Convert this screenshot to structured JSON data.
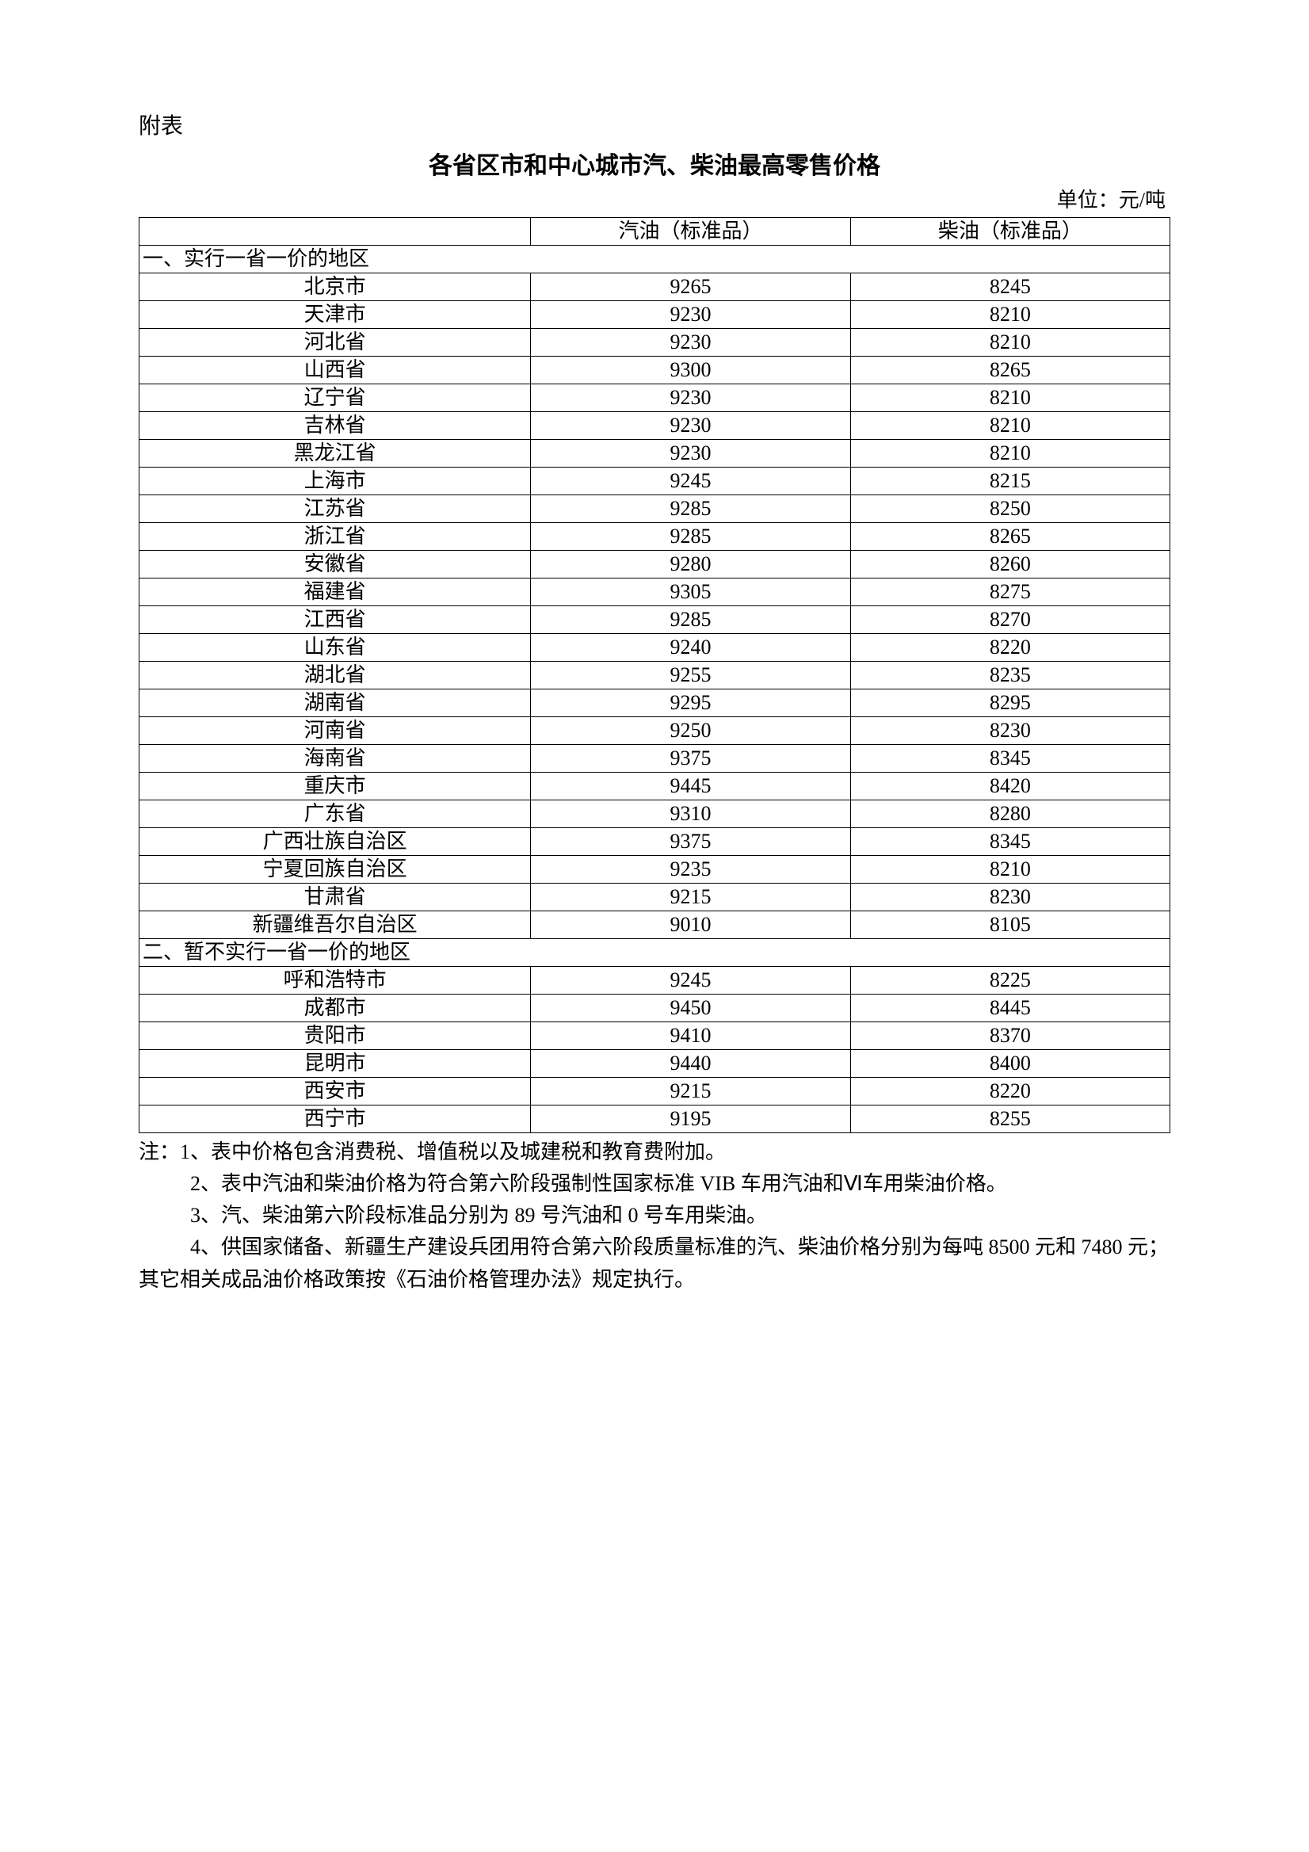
{
  "attachment_label": "附表",
  "title": "各省区市和中心城市汽、柴油最高零售价格",
  "unit": "单位：元/吨",
  "table": {
    "columns": [
      "",
      "汽油（标准品）",
      "柴油（标准品）"
    ],
    "section1_label": "一、实行一省一价的地区",
    "section1_rows": [
      {
        "region": "北京市",
        "gas": "9265",
        "diesel": "8245"
      },
      {
        "region": "天津市",
        "gas": "9230",
        "diesel": "8210"
      },
      {
        "region": "河北省",
        "gas": "9230",
        "diesel": "8210"
      },
      {
        "region": "山西省",
        "gas": "9300",
        "diesel": "8265"
      },
      {
        "region": "辽宁省",
        "gas": "9230",
        "diesel": "8210"
      },
      {
        "region": "吉林省",
        "gas": "9230",
        "diesel": "8210"
      },
      {
        "region": "黑龙江省",
        "gas": "9230",
        "diesel": "8210"
      },
      {
        "region": "上海市",
        "gas": "9245",
        "diesel": "8215"
      },
      {
        "region": "江苏省",
        "gas": "9285",
        "diesel": "8250"
      },
      {
        "region": "浙江省",
        "gas": "9285",
        "diesel": "8265"
      },
      {
        "region": "安徽省",
        "gas": "9280",
        "diesel": "8260"
      },
      {
        "region": "福建省",
        "gas": "9305",
        "diesel": "8275"
      },
      {
        "region": "江西省",
        "gas": "9285",
        "diesel": "8270"
      },
      {
        "region": "山东省",
        "gas": "9240",
        "diesel": "8220"
      },
      {
        "region": "湖北省",
        "gas": "9255",
        "diesel": "8235"
      },
      {
        "region": "湖南省",
        "gas": "9295",
        "diesel": "8295"
      },
      {
        "region": "河南省",
        "gas": "9250",
        "diesel": "8230"
      },
      {
        "region": "海南省",
        "gas": "9375",
        "diesel": "8345"
      },
      {
        "region": "重庆市",
        "gas": "9445",
        "diesel": "8420"
      },
      {
        "region": "广东省",
        "gas": "9310",
        "diesel": "8280"
      },
      {
        "region": "广西壮族自治区",
        "gas": "9375",
        "diesel": "8345"
      },
      {
        "region": "宁夏回族自治区",
        "gas": "9235",
        "diesel": "8210"
      },
      {
        "region": "甘肃省",
        "gas": "9215",
        "diesel": "8230"
      },
      {
        "region": "新疆维吾尔自治区",
        "gas": "9010",
        "diesel": "8105"
      }
    ],
    "section2_label": "二、暂不实行一省一价的地区",
    "section2_rows": [
      {
        "region": "呼和浩特市",
        "gas": "9245",
        "diesel": "8225"
      },
      {
        "region": "成都市",
        "gas": "9450",
        "diesel": "8445"
      },
      {
        "region": "贵阳市",
        "gas": "9410",
        "diesel": "8370"
      },
      {
        "region": "昆明市",
        "gas": "9440",
        "diesel": "8400"
      },
      {
        "region": "西安市",
        "gas": "9215",
        "diesel": "8220"
      },
      {
        "region": "西宁市",
        "gas": "9195",
        "diesel": "8255"
      }
    ]
  },
  "notes": [
    "注：1、表中价格包含消费税、增值税以及城建税和教育费附加。",
    "2、表中汽油和柴油价格为符合第六阶段强制性国家标准 VIB 车用汽油和Ⅵ车用柴油价格。",
    "3、汽、柴油第六阶段标准品分别为 89 号汽油和 0 号车用柴油。",
    "4、供国家储备、新疆生产建设兵团用符合第六阶段质量标准的汽、柴油价格分别为每吨 8500 元和 7480 元；其它相关成品油价格政策按《石油价格管理办法》规定执行。"
  ]
}
